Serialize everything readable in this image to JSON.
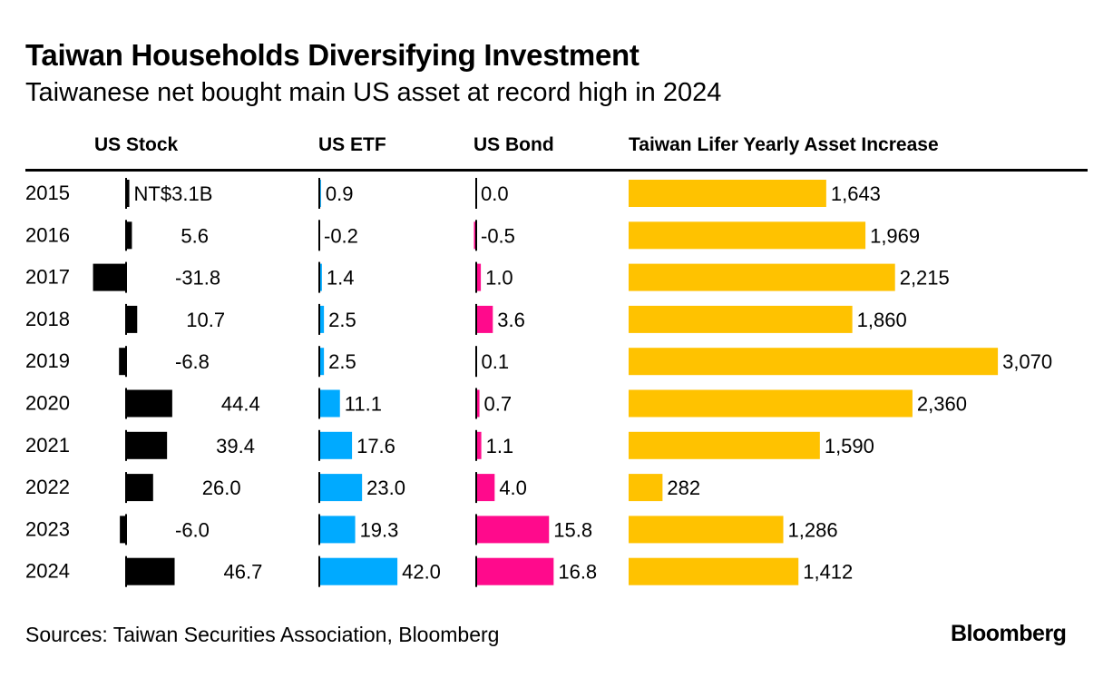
{
  "title": "Taiwan Households Diversifying Investment",
  "subtitle": "Taiwanese net bought main US asset at record high in 2024",
  "source": "Sources: Taiwan Securities Association, Bloomberg",
  "logo": "Bloomberg",
  "chart_data": {
    "type": "bar",
    "orientation": "horizontal",
    "categories": [
      "2015",
      "2016",
      "2017",
      "2018",
      "2019",
      "2020",
      "2021",
      "2022",
      "2023",
      "2024"
    ],
    "series": [
      {
        "name": "US Stock",
        "color": "#000000",
        "values": [
          3.1,
          5.6,
          -31.8,
          10.7,
          -6.8,
          44.4,
          39.4,
          26.0,
          -6.0,
          46.7
        ],
        "labels": [
          "NT$3.1B",
          "5.6",
          "-31.8",
          "10.7",
          "-6.8",
          "44.4",
          "39.4",
          "26.0",
          "-6.0",
          "46.7"
        ]
      },
      {
        "name": "US ETF",
        "color": "#00aaff",
        "values": [
          0.9,
          -0.2,
          1.4,
          2.5,
          2.5,
          11.1,
          17.6,
          23.0,
          19.3,
          42.0
        ],
        "labels": [
          "0.9",
          "-0.2",
          "1.4",
          "2.5",
          "2.5",
          "11.1",
          "17.6",
          "23.0",
          "19.3",
          "42.0"
        ]
      },
      {
        "name": "US Bond",
        "color": "#ff0a8c",
        "values": [
          0.0,
          -0.5,
          1.0,
          3.6,
          0.1,
          0.7,
          1.1,
          4.0,
          15.8,
          16.8
        ],
        "labels": [
          "0.0",
          "-0.5",
          "1.0",
          "3.6",
          "0.1",
          "0.7",
          "1.1",
          "4.0",
          "15.8",
          "16.8"
        ]
      },
      {
        "name": "Taiwan Lifer Yearly Asset Increase",
        "color": "#ffc200",
        "values": [
          1643,
          1969,
          2215,
          1860,
          3070,
          2360,
          1590,
          282,
          1286,
          1412
        ],
        "labels": [
          "1,643",
          "1,969",
          "2,215",
          "1,860",
          "3,070",
          "2,360",
          "1,590",
          "282",
          "1,286",
          "1,412"
        ]
      }
    ],
    "unit": "NT$ billion"
  }
}
